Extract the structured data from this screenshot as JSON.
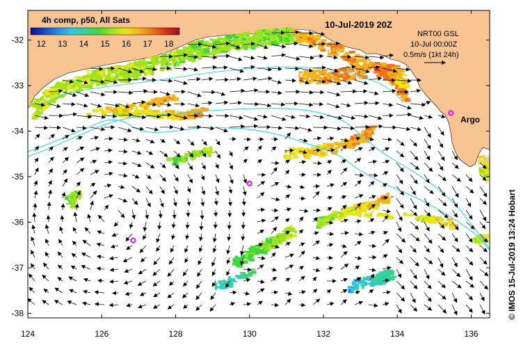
{
  "map": {
    "date_title": "10-Jul-2019 20Z",
    "colorbar": {
      "title": "4h comp, p50, All Sats",
      "tick_labels": [
        "12",
        "13",
        "14",
        "15",
        "16",
        "17",
        "18"
      ],
      "range": [
        11.5,
        18.5
      ],
      "colors": [
        "#0b0b8e",
        "#1447c9",
        "#1f8fe8",
        "#2ec9e0",
        "#33d39a",
        "#3fd83a",
        "#9ee31c",
        "#e8e41a",
        "#f5b21a",
        "#f0741a",
        "#d5321a",
        "#a0101a"
      ]
    },
    "info": {
      "line1": "NRT00 GSL",
      "line2": "10-Jul 00:00Z",
      "line3": "0.5m/s (1kt 24h)"
    },
    "argo_label": "Argo",
    "credit": "© IMOS 15-Jul-2019 13:24 Hobart",
    "x_axis": {
      "range": [
        124,
        136.5
      ],
      "tick_labels": [
        "124",
        "126",
        "128",
        "130",
        "132",
        "134",
        "136"
      ]
    },
    "y_axis": {
      "range": [
        -38.1,
        -31.35
      ],
      "tick_labels": [
        "-32",
        "-33",
        "-34",
        "-35",
        "-36",
        "-37",
        "-38"
      ]
    },
    "argo_floats": [
      {
        "lon": 135.45,
        "lat": -33.6
      },
      {
        "lon": 130.0,
        "lat": -35.15
      },
      {
        "lon": 126.85,
        "lat": -36.4
      }
    ],
    "land_color": "#f7c492",
    "contour_color": "#3fd6e6",
    "argo_color": "#ff00ff"
  }
}
